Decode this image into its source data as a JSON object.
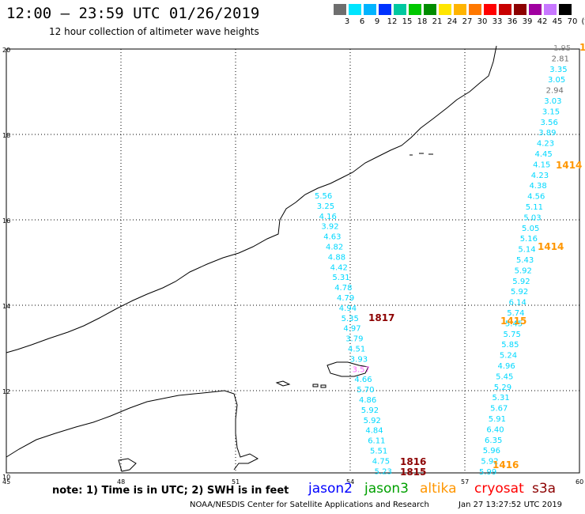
{
  "header": {
    "title": "12:00 – 23:59 UTC 01/26/2019",
    "subtitle": "12 hour collection of altimeter wave heights"
  },
  "color_scale": {
    "labels": [
      "3",
      "6",
      "9",
      "12",
      "15",
      "18",
      "21",
      "24",
      "27",
      "30",
      "33",
      "36",
      "39",
      "42",
      "45",
      "70",
      "(ft)"
    ],
    "colors": [
      "#6e6e6e",
      "#00e5ff",
      "#00b4ff",
      "#0032ff",
      "#00c8a0",
      "#00c800",
      "#008c00",
      "#ffe600",
      "#ffb400",
      "#ff7800",
      "#ff0000",
      "#c80000",
      "#8c0000",
      "#a000a0",
      "#c878ff",
      "#000000"
    ]
  },
  "map": {
    "lat_labels": [
      "20",
      "18",
      "16",
      "14",
      "12",
      "10"
    ],
    "lon_labels": [
      "45",
      "48",
      "51",
      "54",
      "57",
      "60"
    ],
    "pass_west": [
      "5.56",
      "3.25",
      "4.16",
      "3.92",
      "4.63",
      "4.82",
      "4.88",
      "4.42",
      "5.31",
      "4.78",
      "4.79",
      "4.94",
      "5.35",
      "4.97",
      "3.79",
      "4.51",
      "3.93",
      "3.57",
      "4.66",
      "5.70",
      "4.86",
      "5.92",
      "5.92",
      "4.84",
      "6.11",
      "5.51",
      "4.75",
      "5.23"
    ],
    "pass_west_colors": [
      "#00d8ff",
      "#00d8ff",
      "#00d8ff",
      "#00d8ff",
      "#00d8ff",
      "#00d8ff",
      "#00d8ff",
      "#00d8ff",
      "#00d8ff",
      "#00d8ff",
      "#00d8ff",
      "#00d8ff",
      "#00d8ff",
      "#00d8ff",
      "#00d8ff",
      "#00d8ff",
      "#00d8ff",
      "#ff64ff",
      "#00d8ff",
      "#00d8ff",
      "#00d8ff",
      "#00d8ff",
      "#00d8ff",
      "#00d8ff",
      "#00d8ff",
      "#00d8ff",
      "#00d8ff",
      "#00d8ff"
    ],
    "pass_east": [
      "1.95",
      "2.81",
      "3.35",
      "3.05",
      "2.94",
      "3.03",
      "3.15",
      "3.56",
      "3.89",
      "4.23",
      "4.45",
      "4.15",
      "4.23",
      "4.38",
      "4.56",
      "5.11",
      "5.03",
      "5.05",
      "5.16",
      "5.14",
      "5.43",
      "5.92",
      "5.92",
      "5.92",
      "6.14",
      "5.74",
      "5.45",
      "5.75",
      "5.85",
      "5.24",
      "4.96",
      "5.45",
      "5.29",
      "5.31",
      "5.67",
      "5.91",
      "6.40",
      "6.35",
      "5.96",
      "5.92",
      "5.99"
    ],
    "pass_east_colors": [
      "#8c8c8c",
      "#6e6e6e",
      "#00d8ff",
      "#00d8ff",
      "#6e6e6e",
      "#00d8ff",
      "#00d8ff",
      "#00d8ff",
      "#00d8ff",
      "#00d8ff",
      "#00d8ff",
      "#00d8ff",
      "#00d8ff",
      "#00d8ff",
      "#00d8ff",
      "#00d8ff",
      "#00d8ff",
      "#00d8ff",
      "#00d8ff",
      "#00d8ff",
      "#00d8ff",
      "#00d8ff",
      "#00d8ff",
      "#00d8ff",
      "#00d8ff",
      "#00d8ff",
      "#00d8ff",
      "#00d8ff",
      "#00d8ff",
      "#00d8ff",
      "#00d8ff",
      "#00d8ff",
      "#00d8ff",
      "#00d8ff",
      "#00d8ff",
      "#00d8ff",
      "#00d8ff",
      "#00d8ff",
      "#00d8ff",
      "#00d8ff",
      "#00d8ff"
    ],
    "time_labels": [
      {
        "text": "1817",
        "color": "#8c0000"
      },
      {
        "text": "1816",
        "color": "#8c0000"
      },
      {
        "text": "1815",
        "color": "#8c0000"
      },
      {
        "text": "1414",
        "color": "#ff9600"
      },
      {
        "text": "1414",
        "color": "#ff9600"
      },
      {
        "text": "1415",
        "color": "#ff9600"
      },
      {
        "text": "1416",
        "color": "#ff9600"
      },
      {
        "text": "1",
        "color": "#ff9600"
      }
    ]
  },
  "footer": {
    "note": "note: 1) Time is in UTC; 2) SWH is in feet",
    "satellites": [
      {
        "name": "jason2",
        "color": "#0000ff"
      },
      {
        "name": "jason3",
        "color": "#00a000"
      },
      {
        "name": "altika",
        "color": "#ff9600"
      },
      {
        "name": "cryosat",
        "color": "#ff0000"
      },
      {
        "name": "s3a",
        "color": "#8c0000"
      }
    ],
    "credit": "NOAA/NESDIS Center for Satellite Applications and Research",
    "timestamp": "Jan 27 13:27:52 UTC 2019"
  }
}
